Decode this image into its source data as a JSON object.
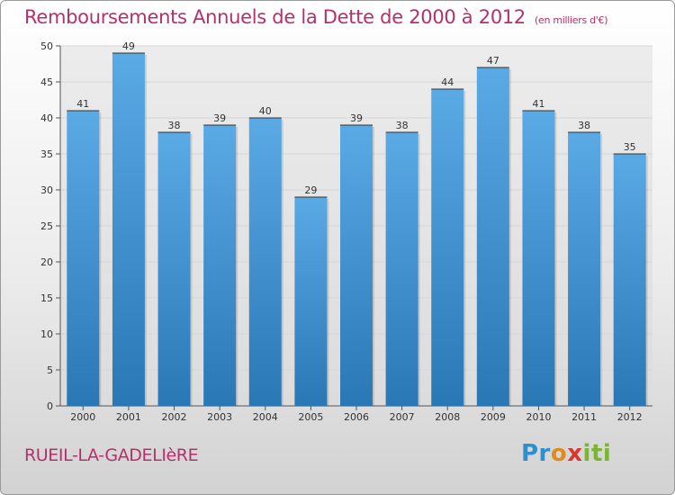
{
  "header": {
    "title": "Remboursements Annuels de la Dette de 2000 à 2012",
    "subtitle": "(en milliers d'€)"
  },
  "footer": {
    "commune": "RUEIL-LA-GADELIèRE",
    "logo": [
      "Pr",
      "o",
      "x",
      "iti"
    ]
  },
  "colors": {
    "title": "#b5306c",
    "bar_top": "#5aaae6",
    "bar_bottom": "#2a77b6",
    "grid": "#d6d6d6"
  },
  "chart_data": {
    "type": "bar",
    "categories": [
      "2000",
      "2001",
      "2002",
      "2003",
      "2004",
      "2005",
      "2006",
      "2007",
      "2008",
      "2009",
      "2010",
      "2011",
      "2012"
    ],
    "values": [
      41,
      49,
      38,
      39,
      40,
      29,
      39,
      38,
      44,
      47,
      41,
      38,
      35
    ],
    "data_labels": [
      "41",
      "49",
      "38",
      "39",
      "40",
      "29",
      "39",
      "38",
      "44",
      "47",
      "41",
      "38",
      "35"
    ],
    "y_ticks": [
      "0",
      "5",
      "10",
      "15",
      "20",
      "25",
      "30",
      "35",
      "40",
      "45",
      "50"
    ],
    "title": "Remboursements Annuels de la Dette de 2000 à 2012",
    "xlabel": "",
    "ylabel": "",
    "ylim": [
      0,
      50
    ],
    "grid": true,
    "legend": "none"
  }
}
